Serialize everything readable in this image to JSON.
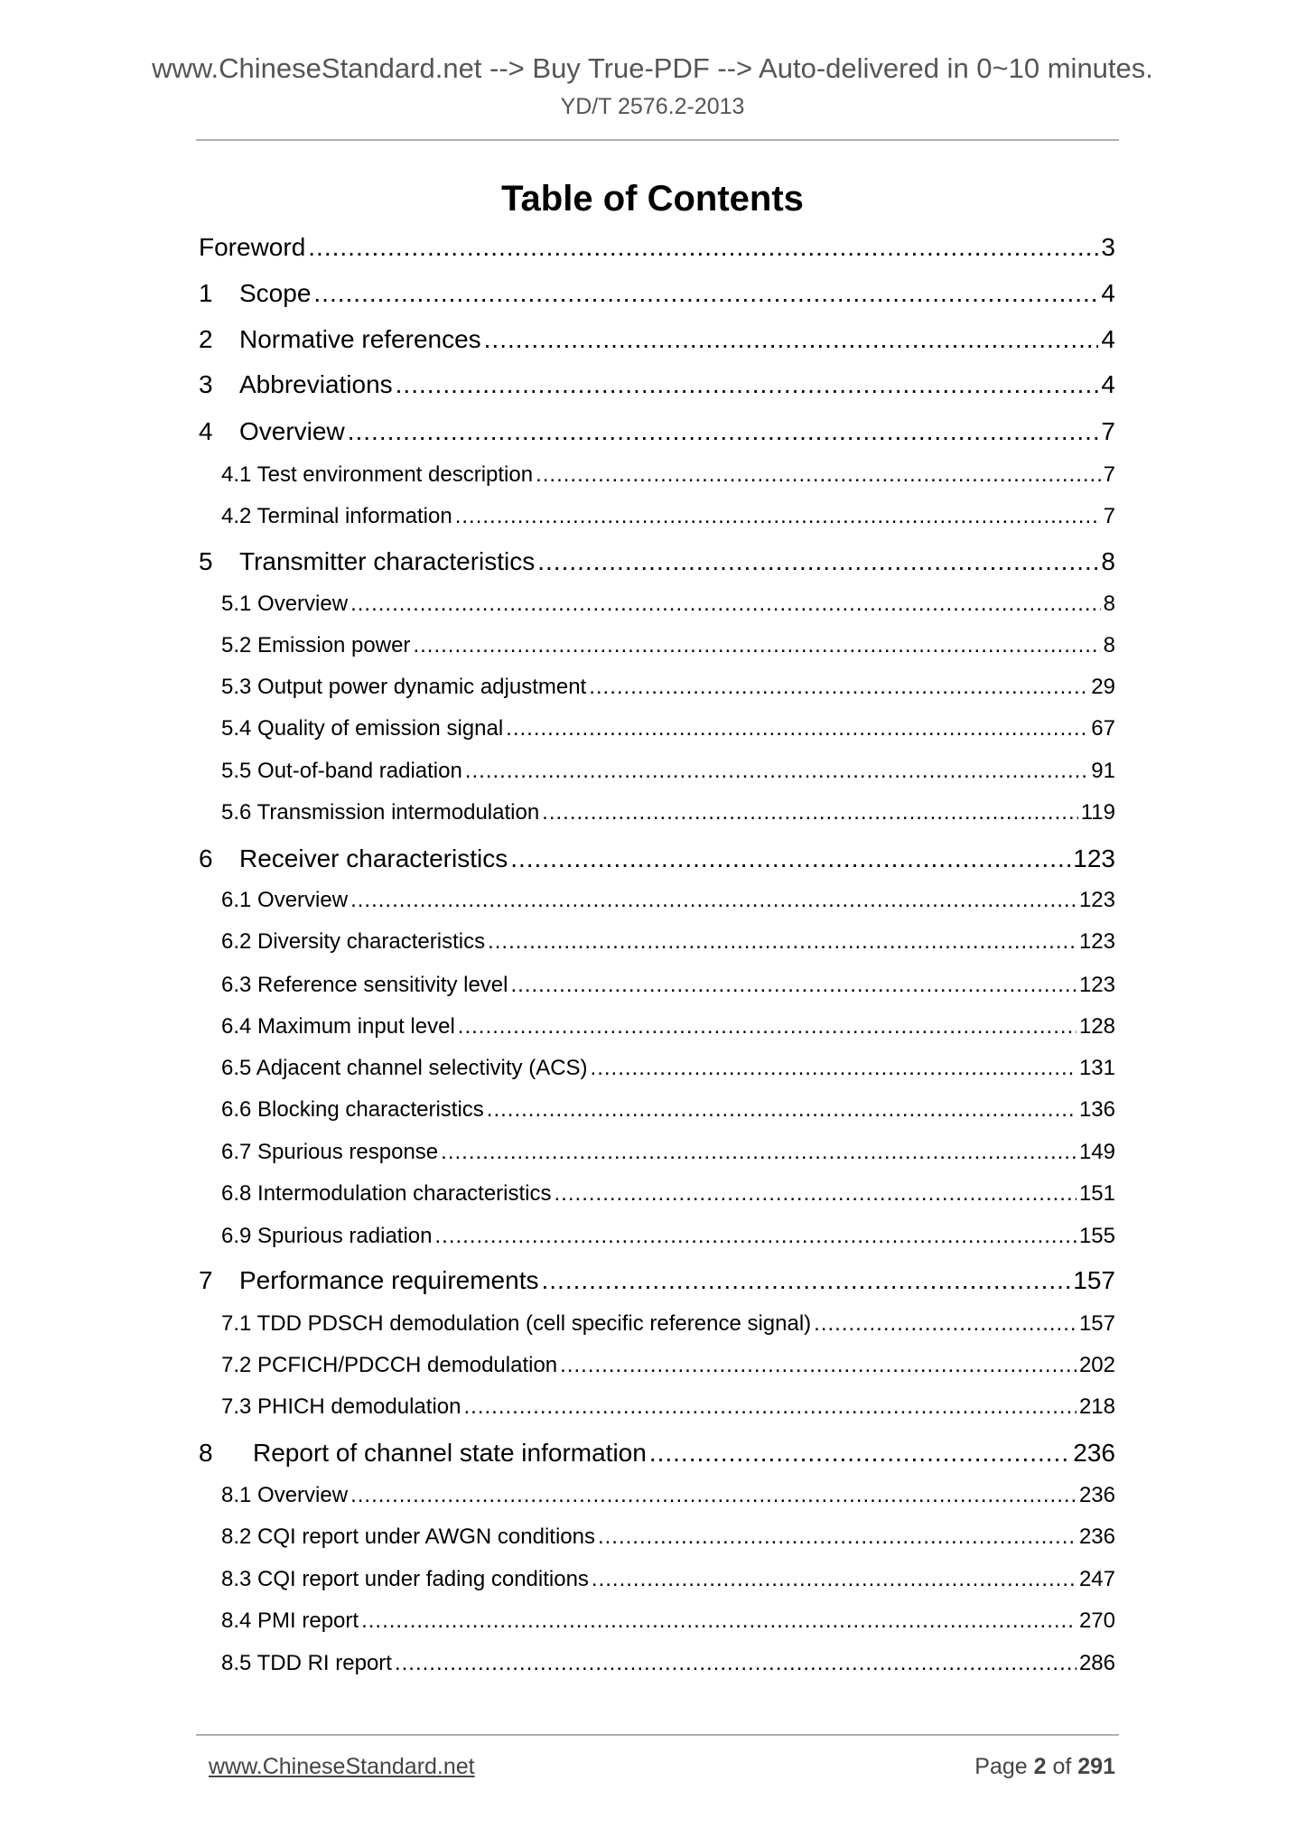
{
  "header": {
    "banner": "www.ChineseStandard.net --> Buy True-PDF --> Auto-delivered in 0~10 minutes.",
    "standard_number": "YD/T 2576.2-2013"
  },
  "title": "Table of Contents",
  "toc": [
    {
      "level": 1,
      "number": "",
      "label": "Foreword",
      "page": "3"
    },
    {
      "level": 1,
      "number": "1",
      "label": "Scope",
      "page": "4"
    },
    {
      "level": 1,
      "number": "2",
      "label": "Normative references",
      "page": "4"
    },
    {
      "level": 1,
      "number": "3",
      "label": "Abbreviations",
      "page": "4"
    },
    {
      "level": 1,
      "number": "4",
      "label": "Overview",
      "page": "7"
    },
    {
      "level": 2,
      "number": "",
      "label": "4.1 Test environment description",
      "page": "7"
    },
    {
      "level": 2,
      "number": "",
      "label": "4.2 Terminal information",
      "page": "7"
    },
    {
      "level": 1,
      "number": "5",
      "label": "Transmitter characteristics",
      "page": "8"
    },
    {
      "level": 2,
      "number": "",
      "label": "5.1 Overview",
      "page": "8"
    },
    {
      "level": 2,
      "number": "",
      "label": "5.2 Emission power",
      "page": "8"
    },
    {
      "level": 2,
      "number": "",
      "label": "5.3 Output power dynamic adjustment",
      "page": "29"
    },
    {
      "level": 2,
      "number": "",
      "label": "5.4 Quality of emission signal",
      "page": "67"
    },
    {
      "level": 2,
      "number": "",
      "label": "5.5 Out-of-band radiation",
      "page": "91"
    },
    {
      "level": 2,
      "number": "",
      "label": "5.6 Transmission intermodulation",
      "page": "119"
    },
    {
      "level": 1,
      "number": "6",
      "label": "Receiver characteristics",
      "page": "123"
    },
    {
      "level": 2,
      "number": "",
      "label": "6.1 Overview",
      "page": "123"
    },
    {
      "level": 2,
      "number": "",
      "label": "6.2 Diversity characteristics",
      "page": "123"
    },
    {
      "level": 2,
      "number": "",
      "label": "6.3 Reference sensitivity level",
      "page": "123"
    },
    {
      "level": 2,
      "number": "",
      "label": "6.4 Maximum input level",
      "page": "128"
    },
    {
      "level": 2,
      "number": "",
      "label": "6.5 Adjacent channel selectivity (ACS)",
      "page": "131"
    },
    {
      "level": 2,
      "number": "",
      "label": "6.6 Blocking characteristics",
      "page": "136"
    },
    {
      "level": 2,
      "number": "",
      "label": "6.7 Spurious response",
      "page": "149"
    },
    {
      "level": 2,
      "number": "",
      "label": "6.8 Intermodulation characteristics",
      "page": "151"
    },
    {
      "level": 2,
      "number": "",
      "label": "6.9 Spurious radiation",
      "page": "155"
    },
    {
      "level": 1,
      "number": "7",
      "label": "Performance requirements",
      "page": "157"
    },
    {
      "level": 2,
      "number": "",
      "label": "7.1 TDD PDSCH demodulation (cell specific reference signal)",
      "page": "157"
    },
    {
      "level": 2,
      "number": "",
      "label": "7.2 PCFICH/PDCCH demodulation",
      "page": "202"
    },
    {
      "level": 2,
      "number": "",
      "label": "7.3 PHICH demodulation",
      "page": "218"
    },
    {
      "level": 1,
      "number": "8",
      "label": "Report of channel state information",
      "page": "236"
    },
    {
      "level": 2,
      "number": "",
      "label": "8.1 Overview",
      "page": "236"
    },
    {
      "level": 2,
      "number": "",
      "label": "8.2 CQI report under AWGN conditions",
      "page": "236"
    },
    {
      "level": 2,
      "number": "",
      "label": "8.3 CQI report under fading conditions",
      "page": "247"
    },
    {
      "level": 2,
      "number": "",
      "label": "8.4 PMI report",
      "page": "270"
    },
    {
      "level": 2,
      "number": "",
      "label": "8.5 TDD RI report",
      "page": "286"
    }
  ],
  "footer": {
    "link": "www.ChineseStandard.net",
    "page_prefix": "Page ",
    "page_current": "2",
    "page_of": " of ",
    "page_total": "291"
  }
}
